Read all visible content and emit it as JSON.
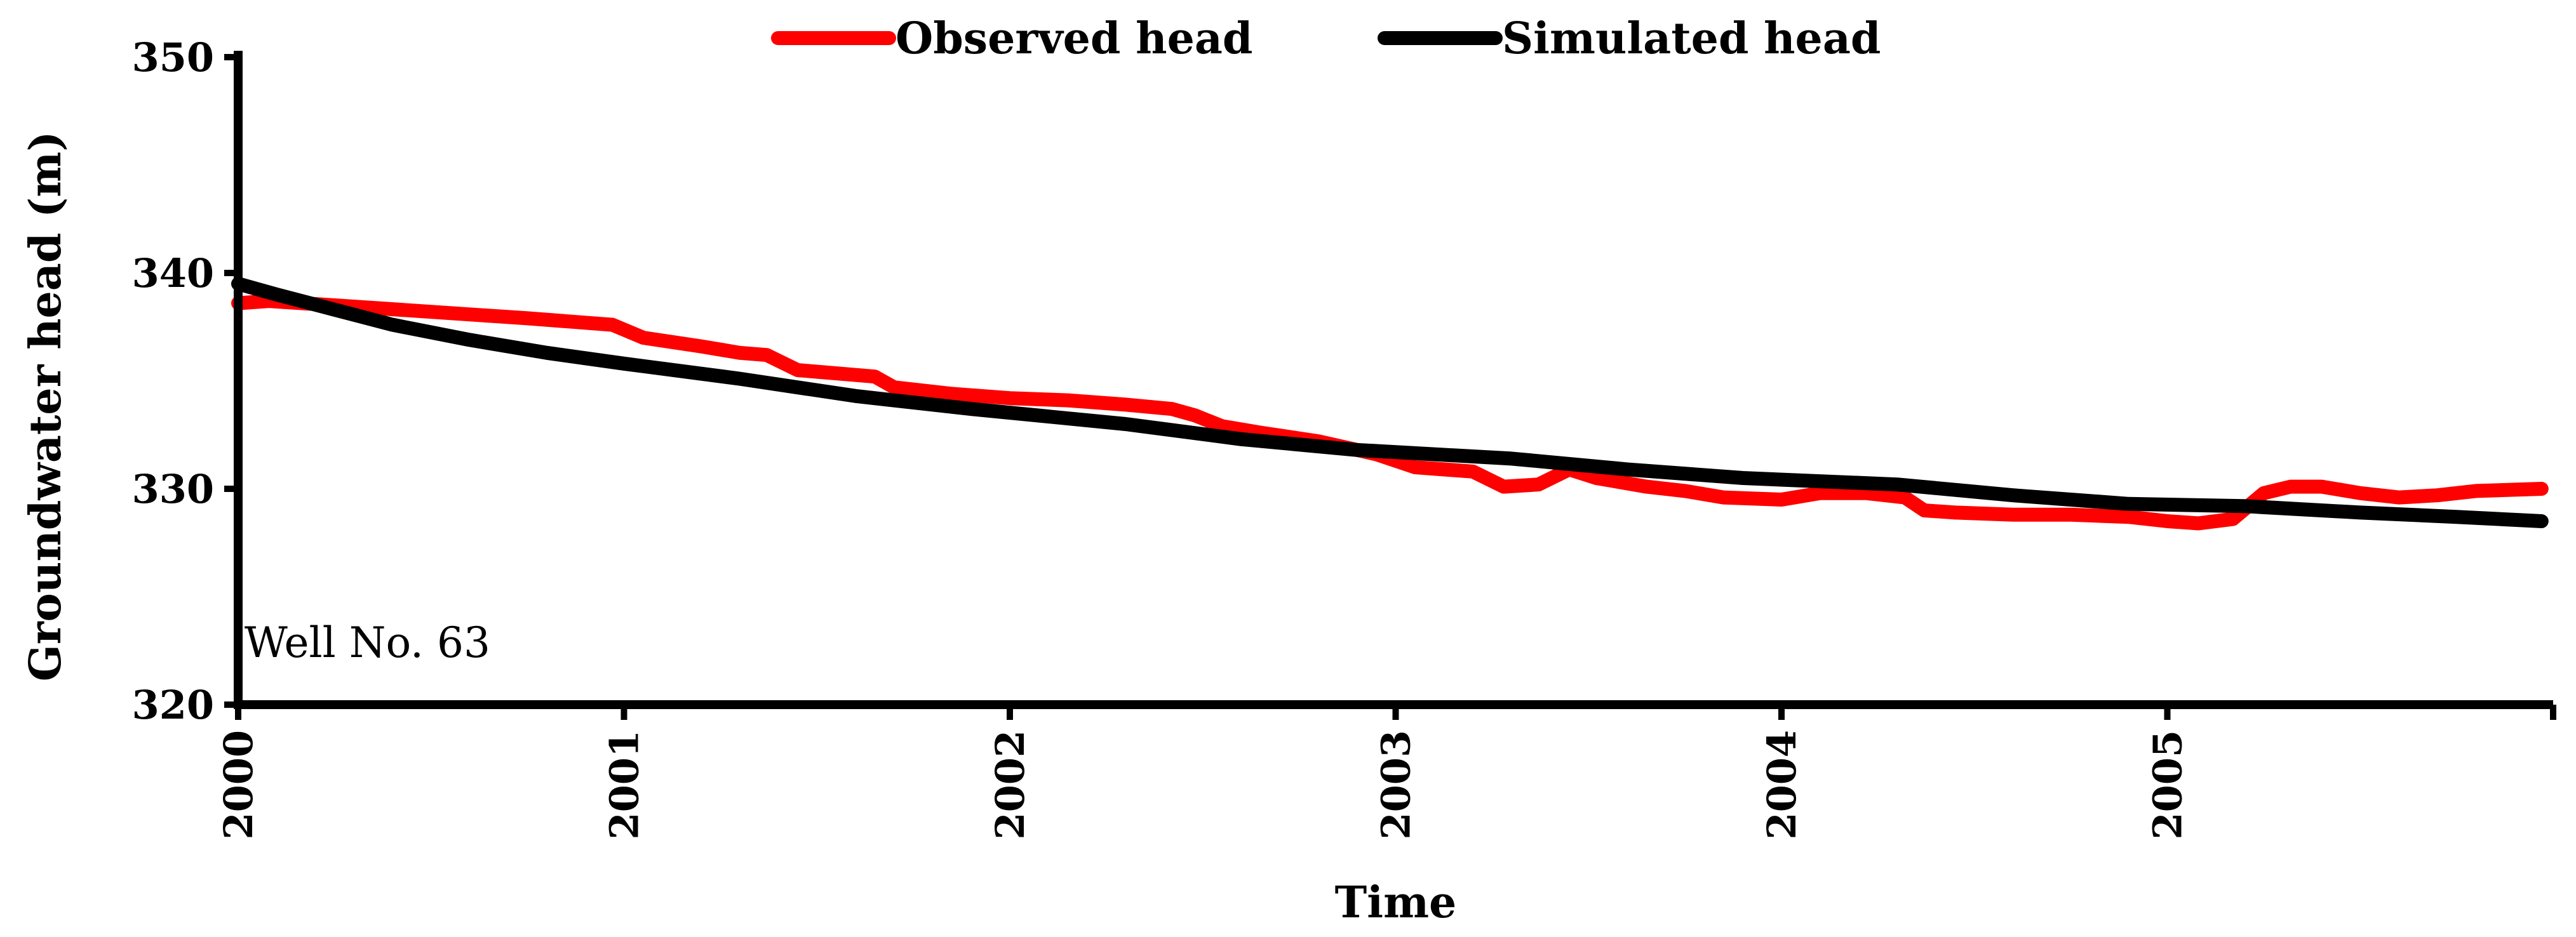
{
  "chart_data": {
    "type": "line",
    "title": "",
    "xlabel": "Time",
    "ylabel": "Groundwater head (m)",
    "ylim": [
      320,
      350
    ],
    "yticks": [
      320,
      330,
      340,
      350
    ],
    "xlim": [
      2000,
      2006
    ],
    "xticks": [
      2000,
      2001,
      2002,
      2003,
      2004,
      2005
    ],
    "grid": false,
    "legend": "top-center",
    "annotation": "Well No. 63",
    "series": [
      {
        "name": "Observed head",
        "color": "#ff0000",
        "x": [
          2000.0,
          2000.08,
          2000.25,
          2000.5,
          2000.75,
          2000.97,
          2001.05,
          2001.2,
          2001.3,
          2001.37,
          2001.45,
          2001.65,
          2001.7,
          2001.85,
          2002.0,
          2002.15,
          2002.3,
          2002.42,
          2002.48,
          2002.55,
          2002.65,
          2002.8,
          2002.95,
          2003.05,
          2003.2,
          2003.28,
          2003.37,
          2003.45,
          2003.52,
          2003.65,
          2003.75,
          2003.85,
          2004.0,
          2004.1,
          2004.22,
          2004.32,
          2004.37,
          2004.45,
          2004.6,
          2004.75,
          2004.9,
          2005.0,
          2005.08,
          2005.17,
          2005.25,
          2005.32,
          2005.4,
          2005.5,
          2005.6,
          2005.7,
          2005.8,
          2005.97
        ],
        "y": [
          338.6,
          338.7,
          338.5,
          338.2,
          337.9,
          337.6,
          337.0,
          336.6,
          336.3,
          336.2,
          335.5,
          335.2,
          334.7,
          334.4,
          334.2,
          334.1,
          333.9,
          333.7,
          333.4,
          332.9,
          332.6,
          332.2,
          331.6,
          331.0,
          330.8,
          330.1,
          330.2,
          330.9,
          330.5,
          330.1,
          329.9,
          329.6,
          329.5,
          329.8,
          329.8,
          329.6,
          329.0,
          328.9,
          328.8,
          328.8,
          328.7,
          328.5,
          328.4,
          328.6,
          329.8,
          330.1,
          330.1,
          329.8,
          329.6,
          329.7,
          329.9,
          330.0
        ]
      },
      {
        "name": "Simulated head",
        "color": "#000000",
        "x": [
          2000.0,
          2000.1,
          2000.25,
          2000.4,
          2000.6,
          2000.8,
          2001.0,
          2001.3,
          2001.6,
          2001.9,
          2002.3,
          2002.6,
          2002.9,
          2003.3,
          2003.6,
          2003.9,
          2004.3,
          2004.6,
          2004.9,
          2005.2,
          2005.5,
          2005.75,
          2005.97
        ],
        "y": [
          339.5,
          339.0,
          338.3,
          337.6,
          336.9,
          336.3,
          335.8,
          335.1,
          334.3,
          333.7,
          333.0,
          332.3,
          331.8,
          331.4,
          330.9,
          330.5,
          330.2,
          329.7,
          329.3,
          329.2,
          328.9,
          328.7,
          328.5
        ]
      }
    ]
  }
}
